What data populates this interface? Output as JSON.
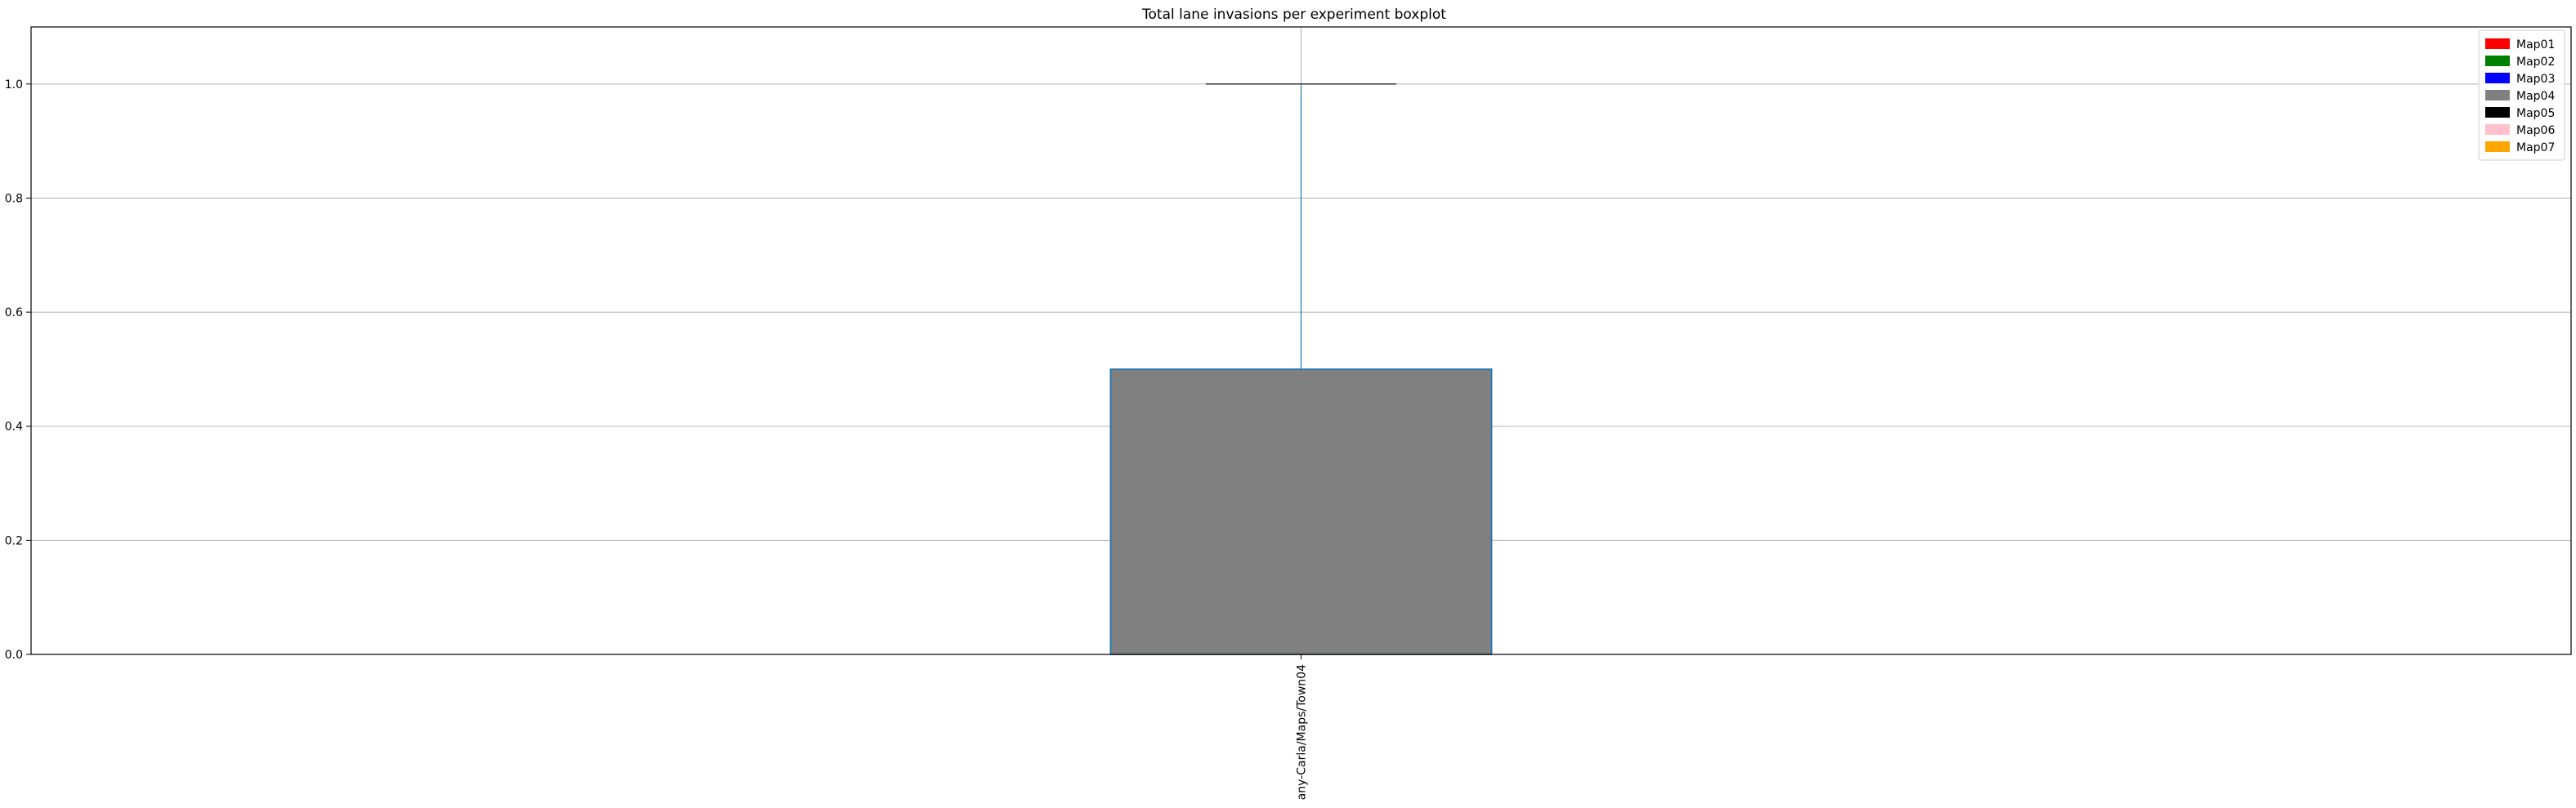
{
  "chart_data": {
    "type": "boxplot",
    "title": "Total lane invasions per experiment boxplot",
    "xlabel": "",
    "ylabel": "",
    "ylim": [
      0,
      1.1
    ],
    "yticks": [
      0.0,
      0.2,
      0.4,
      0.6,
      0.8,
      1.0
    ],
    "ytick_labels": [
      "0.0",
      "0.2",
      "0.4",
      "0.6",
      "0.8",
      "1.0"
    ],
    "grid": "horizontal",
    "legend_position": "top-right",
    "categories": [
      "any-Carla/Maps/Town04"
    ],
    "boxes": [
      {
        "category": "any-Carla/Maps/Town04",
        "min": 0.0,
        "q1": 0.0,
        "median": 0.0,
        "q3": 0.5,
        "max": 1.0,
        "fill_color": "#808080",
        "edge_color": "#1f77b4"
      }
    ],
    "legend": [
      {
        "label": "Map01",
        "color": "#ff0000"
      },
      {
        "label": "Map02",
        "color": "#008000"
      },
      {
        "label": "Map03",
        "color": "#0000ff"
      },
      {
        "label": "Map04",
        "color": "#808080"
      },
      {
        "label": "Map05",
        "color": "#000000"
      },
      {
        "label": "Map06",
        "color": "#ffc0cb"
      },
      {
        "label": "Map07",
        "color": "#ffa500"
      }
    ]
  }
}
